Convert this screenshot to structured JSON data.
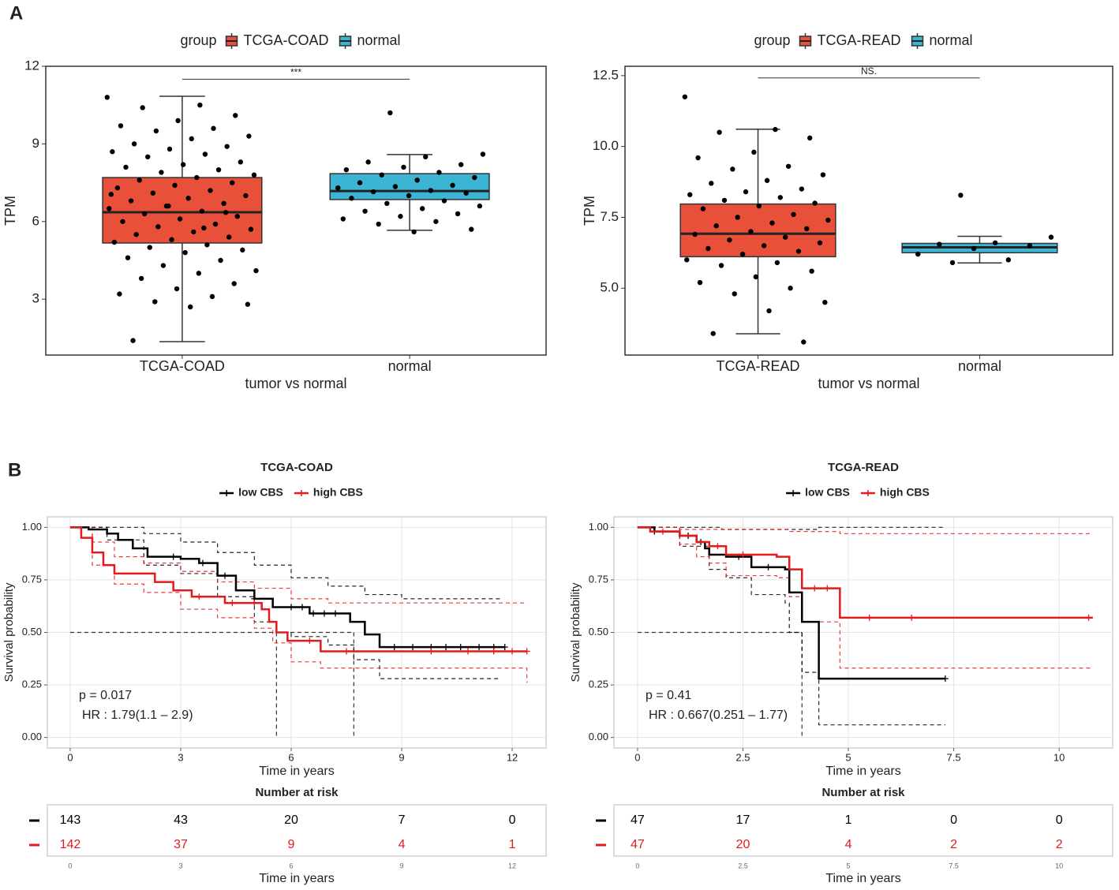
{
  "panel_labels": [
    "A",
    "B"
  ],
  "chart_data": [
    {
      "type": "box",
      "legend_title": "group",
      "x_label": "tumor vs normal",
      "y_label": "TPM",
      "categories": [
        "TCGA-COAD",
        "normal"
      ],
      "ylim": [
        0.84,
        12
      ],
      "yticks": [
        3,
        6,
        9,
        12
      ],
      "significance": {
        "label": "***",
        "y": 11.5
      },
      "series": [
        {
          "name": "TCGA-COAD",
          "color": "#e8503a",
          "box": {
            "whisker_low": 1.36,
            "q1": 5.17,
            "median": 6.36,
            "q3": 7.7,
            "whisker_high": 10.84
          },
          "points": [
            10.8,
            10.5,
            10.4,
            10.1,
            9.9,
            9.7,
            9.6,
            9.5,
            9.3,
            9.2,
            9.0,
            8.9,
            8.8,
            8.7,
            8.6,
            8.5,
            8.3,
            8.2,
            8.1,
            8.0,
            7.9,
            7.8,
            7.7,
            7.6,
            7.5,
            7.4,
            7.3,
            7.2,
            7.1,
            7.0,
            6.9,
            6.8,
            6.7,
            6.6,
            6.5,
            6.4,
            6.3,
            6.2,
            6.1,
            6.0,
            5.9,
            5.8,
            5.7,
            5.6,
            5.5,
            5.4,
            5.3,
            5.2,
            5.1,
            5.0,
            4.9,
            4.8,
            4.6,
            4.5,
            4.3,
            4.1,
            4.0,
            3.8,
            3.6,
            3.4,
            3.2,
            3.1,
            2.9,
            2.8,
            2.7,
            1.4,
            6.35,
            6.6,
            7.05,
            5.75
          ]
        },
        {
          "name": "normal",
          "color": "#3cb4d4",
          "box": {
            "whisker_low": 5.66,
            "q1": 6.85,
            "median": 7.18,
            "q3": 7.85,
            "whisker_high": 8.59
          },
          "points": [
            10.2,
            8.6,
            8.5,
            8.3,
            8.2,
            8.1,
            8.0,
            7.9,
            7.8,
            7.7,
            7.6,
            7.5,
            7.4,
            7.35,
            7.3,
            7.2,
            7.15,
            7.1,
            7.0,
            6.9,
            6.8,
            6.7,
            6.6,
            6.5,
            6.4,
            6.3,
            6.2,
            6.1,
            6.0,
            5.9,
            5.7,
            5.6
          ]
        }
      ]
    },
    {
      "type": "box",
      "legend_title": "group",
      "x_label": "tumor vs normal",
      "y_label": "TPM",
      "categories": [
        "TCGA-READ",
        "normal"
      ],
      "ylim": [
        2.64,
        12.83
      ],
      "yticks": [
        {
          "value": 5,
          "label": "5.0"
        },
        {
          "value": 7.5,
          "label": "7.5"
        },
        {
          "value": 10,
          "label": "10.0"
        },
        {
          "value": 12.5,
          "label": "12.5"
        }
      ],
      "significance": {
        "label": "NS.",
        "y": 12.42
      },
      "series": [
        {
          "name": "TCGA-READ",
          "color": "#e8503a",
          "box": {
            "whisker_low": 3.39,
            "q1": 6.11,
            "median": 6.92,
            "q3": 7.97,
            "whisker_high": 10.61
          },
          "points": [
            11.75,
            10.6,
            10.5,
            10.3,
            9.8,
            9.6,
            9.3,
            9.2,
            9.0,
            8.8,
            8.7,
            8.5,
            8.4,
            8.3,
            8.2,
            8.1,
            8.0,
            7.9,
            7.8,
            7.6,
            7.5,
            7.4,
            7.3,
            7.2,
            7.1,
            7.0,
            6.9,
            6.8,
            6.7,
            6.6,
            6.5,
            6.4,
            6.3,
            6.2,
            6.0,
            5.9,
            5.8,
            5.6,
            5.4,
            5.2,
            5.0,
            4.8,
            4.5,
            4.2,
            3.4,
            3.1
          ]
        },
        {
          "name": "normal",
          "color": "#3cb4d4",
          "box": {
            "whisker_low": 5.89,
            "q1": 6.25,
            "median": 6.44,
            "q3": 6.58,
            "whisker_high": 6.83
          },
          "points": [
            8.28,
            6.8,
            6.6,
            6.55,
            6.5,
            6.4,
            6.2,
            6.0,
            5.9
          ]
        }
      ]
    },
    {
      "type": "km",
      "title": "TCGA-COAD",
      "x_label": "Time in years",
      "y_label": "Survival probability",
      "xlim": [
        -0.62,
        12.92
      ],
      "ylim": [
        -0.05,
        1.05
      ],
      "xticks": [
        0,
        3,
        6,
        9,
        12
      ],
      "yticks": [
        {
          "value": 0,
          "label": "0.00"
        },
        {
          "value": 0.25,
          "label": "0.25"
        },
        {
          "value": 0.5,
          "label": "0.50"
        },
        {
          "value": 0.75,
          "label": "0.75"
        },
        {
          "value": 1,
          "label": "1.00"
        }
      ],
      "grid": true,
      "annotations": [
        "p = 0.017",
        "HR : 1.79(1.1 – 2.9)"
      ],
      "median_line": {
        "y": 0.5,
        "x": [
          5.6,
          7.7
        ]
      },
      "series": [
        {
          "name": "low CBS",
          "color": "#000000",
          "x": [
            0,
            0.5,
            1,
            1.3,
            1.7,
            2.1,
            3.0,
            3.5,
            4.0,
            4.5,
            5.0,
            5.5,
            6.5,
            7.6,
            8.0,
            8.4,
            11.8
          ],
          "values": [
            1.0,
            0.99,
            0.97,
            0.94,
            0.9,
            0.86,
            0.85,
            0.83,
            0.77,
            0.7,
            0.66,
            0.62,
            0.59,
            0.55,
            0.49,
            0.43,
            0.43
          ],
          "ci_upper": {
            "x": [
              0,
              1,
              2,
              3,
              4,
              5,
              6,
              7,
              8,
              9,
              11.7
            ],
            "values": [
              1,
              1,
              0.97,
              0.93,
              0.88,
              0.82,
              0.76,
              0.72,
              0.68,
              0.66,
              0.66
            ]
          },
          "ci_lower": {
            "x": [
              0,
              1,
              2,
              3,
              4,
              5,
              5.6,
              6,
              7,
              7.7,
              8.4,
              11.7
            ],
            "values": [
              1,
              0.94,
              0.82,
              0.78,
              0.67,
              0.55,
              0.5,
              0.48,
              0.44,
              0.37,
              0.28,
              0.28
            ]
          },
          "censored": [
            2.8,
            3.6,
            4.2,
            5.0,
            6.0,
            6.3,
            6.6,
            6.9,
            7.2,
            8.8,
            9.3,
            9.8,
            10.2,
            10.6,
            11.1,
            11.5,
            11.8
          ]
        },
        {
          "name": "high CBS",
          "color": "#e41a1c",
          "x": [
            0,
            0.3,
            0.6,
            0.9,
            1.2,
            2.3,
            2.8,
            3.3,
            4.2,
            5.2,
            5.4,
            5.6,
            5.9,
            6.8,
            12.4
          ],
          "values": [
            1.0,
            0.95,
            0.88,
            0.82,
            0.78,
            0.74,
            0.7,
            0.67,
            0.64,
            0.61,
            0.55,
            0.5,
            0.46,
            0.41,
            0.41
          ],
          "ci_upper": {
            "x": [
              0,
              0.6,
              1.2,
              2,
              3,
              4,
              5,
              6,
              7,
              12.4
            ],
            "values": [
              1,
              0.93,
              0.86,
              0.83,
              0.79,
              0.74,
              0.71,
              0.66,
              0.64,
              0.64
            ]
          },
          "ci_lower": {
            "x": [
              0,
              0.6,
              1.2,
              2,
              3,
              4,
              5,
              5.5,
              6,
              6.8,
              12.4
            ],
            "values": [
              1,
              0.82,
              0.73,
              0.69,
              0.61,
              0.57,
              0.52,
              0.45,
              0.36,
              0.33,
              0.26
            ]
          },
          "censored": [
            3.5,
            4.4,
            5.0,
            6.5,
            7.5,
            9.8,
            10.8,
            11.5,
            12.0,
            12.4
          ]
        }
      ],
      "risk_table": {
        "title": "Number at risk",
        "x_label": "Time in years",
        "rows": [
          [
            143,
            43,
            20,
            7,
            0
          ],
          [
            142,
            37,
            9,
            4,
            1
          ]
        ]
      }
    },
    {
      "type": "km",
      "title": "TCGA-READ",
      "x_label": "Time in years",
      "y_label": "Survival probability",
      "xlim": [
        -0.56,
        11.27
      ],
      "ylim": [
        -0.05,
        1.05
      ],
      "xticks": [
        0,
        2.5,
        5,
        7.5,
        10
      ],
      "yticks": [
        {
          "value": 0,
          "label": "0.00"
        },
        {
          "value": 0.25,
          "label": "0.25"
        },
        {
          "value": 0.5,
          "label": "0.50"
        },
        {
          "value": 0.75,
          "label": "0.75"
        },
        {
          "value": 1,
          "label": "1.00"
        }
      ],
      "grid": true,
      "annotations": [
        "p = 0.41",
        "HR : 0.667(0.251 – 1.77)"
      ],
      "median_line": {
        "y": 0.5,
        "x": [
          3.9
        ]
      },
      "series": [
        {
          "name": "low CBS",
          "color": "#000000",
          "x": [
            0,
            0.4,
            1,
            1.4,
            1.6,
            1.7,
            2.1,
            2.7,
            3.5,
            3.6,
            3.9,
            4.3,
            7.3
          ],
          "values": [
            1,
            0.98,
            0.96,
            0.93,
            0.9,
            0.87,
            0.86,
            0.81,
            0.8,
            0.69,
            0.55,
            0.28,
            0.28
          ],
          "ci_upper": {
            "x": [
              0,
              2,
              4.3,
              7.3
            ],
            "values": [
              1,
              0.99,
              1,
              1
            ]
          },
          "ci_lower": {
            "x": [
              0,
              1,
              1.7,
              2.1,
              2.7,
              3.5,
              3.6,
              3.9,
              4.3,
              7.3
            ],
            "values": [
              1,
              0.91,
              0.8,
              0.76,
              0.68,
              0.64,
              0.5,
              0.31,
              0.06,
              0.06
            ]
          },
          "censored": [
            0.4,
            1.2,
            1.5,
            2.4,
            3.1,
            7.3
          ]
        },
        {
          "name": "high CBS",
          "color": "#e41a1c",
          "x": [
            0,
            0.3,
            1.0,
            1.4,
            1.7,
            2.1,
            3.3,
            3.6,
            3.9,
            4.8,
            10.8
          ],
          "values": [
            1,
            0.98,
            0.96,
            0.93,
            0.91,
            0.87,
            0.86,
            0.8,
            0.71,
            0.57,
            0.57
          ],
          "ci_upper": {
            "x": [
              0,
              1,
              3.6,
              4.8,
              10.8
            ],
            "values": [
              1,
              0.99,
              0.98,
              0.97,
              0.97
            ]
          },
          "ci_lower": {
            "x": [
              0,
              1,
              1.4,
              1.7,
              2.1,
              3.3,
              3.6,
              3.9,
              4.8,
              10.8
            ],
            "values": [
              1,
              0.92,
              0.86,
              0.83,
              0.77,
              0.76,
              0.67,
              0.55,
              0.33,
              0.33
            ]
          },
          "censored": [
            0.6,
            1.9,
            2.5,
            4.2,
            4.5,
            5.5,
            6.5,
            10.7
          ]
        }
      ],
      "risk_table": {
        "title": "Number at risk",
        "x_label": "Time in years",
        "rows": [
          [
            47,
            17,
            1,
            0,
            0
          ],
          [
            47,
            20,
            4,
            2,
            2
          ]
        ]
      }
    }
  ]
}
